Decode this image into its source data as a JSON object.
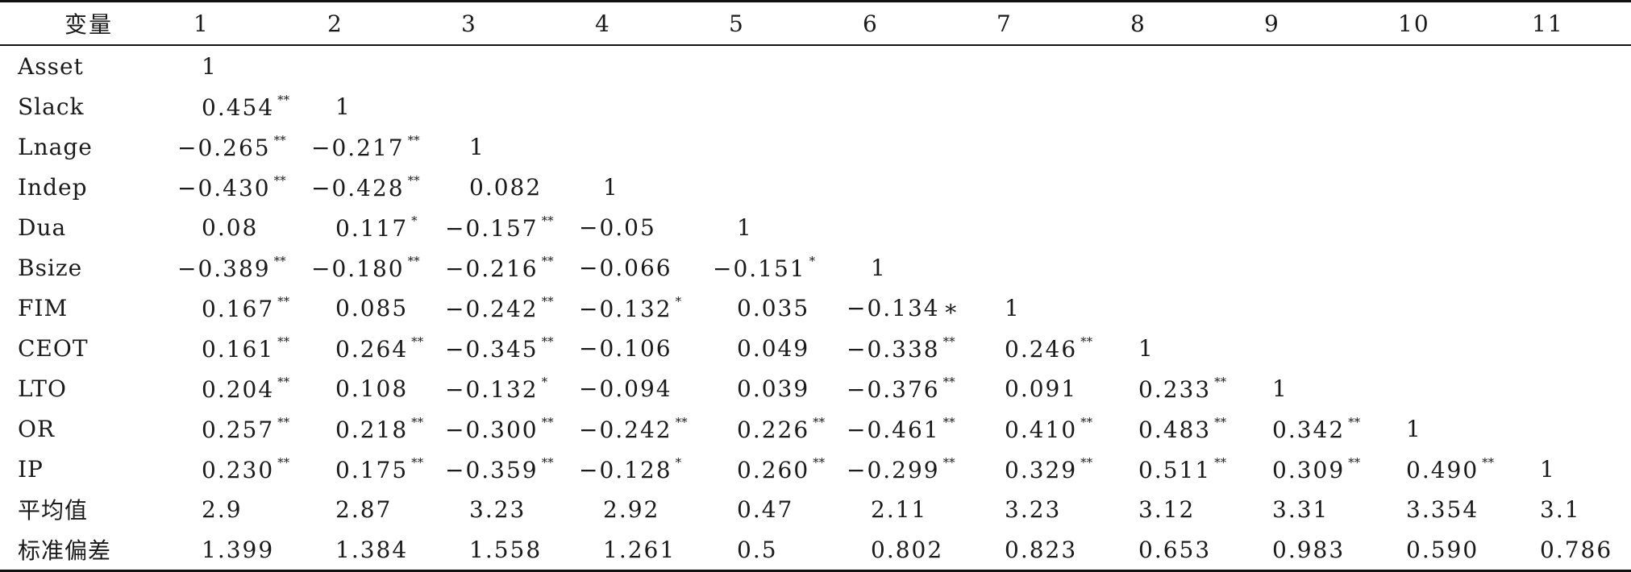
{
  "table": {
    "headers": [
      "变量",
      "1",
      "2",
      "3",
      "4",
      "5",
      "6",
      "7",
      "8",
      "9",
      "10",
      "11"
    ],
    "rows": [
      {
        "label": "Asset",
        "cells": [
          {
            "v": "1",
            "s": ""
          }
        ]
      },
      {
        "label": "Slack",
        "cells": [
          {
            "v": "0.454",
            "s": "**"
          },
          {
            "v": "1",
            "s": ""
          }
        ]
      },
      {
        "label": "Lnage",
        "cells": [
          {
            "v": "−0.265",
            "s": "**"
          },
          {
            "v": "−0.217",
            "s": "**"
          },
          {
            "v": "1",
            "s": ""
          }
        ]
      },
      {
        "label": "Indep",
        "cells": [
          {
            "v": "−0.430",
            "s": "**"
          },
          {
            "v": "−0.428",
            "s": "**"
          },
          {
            "v": "0.082",
            "s": ""
          },
          {
            "v": "1",
            "s": ""
          }
        ]
      },
      {
        "label": "Dua",
        "cells": [
          {
            "v": "0.08",
            "s": ""
          },
          {
            "v": "0.117",
            "s": "*"
          },
          {
            "v": "−0.157",
            "s": "**"
          },
          {
            "v": "−0.05",
            "s": ""
          },
          {
            "v": "1",
            "s": ""
          }
        ]
      },
      {
        "label": "Bsize",
        "cells": [
          {
            "v": "−0.389",
            "s": "**"
          },
          {
            "v": "−0.180",
            "s": "**"
          },
          {
            "v": "−0.216",
            "s": "**"
          },
          {
            "v": "−0.066",
            "s": ""
          },
          {
            "v": "−0.151",
            "s": "*"
          },
          {
            "v": "1",
            "s": ""
          }
        ]
      },
      {
        "label": "FIM",
        "cells": [
          {
            "v": "0.167",
            "s": "**"
          },
          {
            "v": "0.085",
            "s": ""
          },
          {
            "v": "−0.242",
            "s": "**"
          },
          {
            "v": "−0.132",
            "s": "*"
          },
          {
            "v": "0.035",
            "s": ""
          },
          {
            "v": "−0.134",
            "s": "∗",
            "inline": true
          },
          {
            "v": "1",
            "s": ""
          }
        ]
      },
      {
        "label": "CEOT",
        "cells": [
          {
            "v": "0.161",
            "s": "**"
          },
          {
            "v": "0.264",
            "s": "**"
          },
          {
            "v": "−0.345",
            "s": "**"
          },
          {
            "v": "−0.106",
            "s": ""
          },
          {
            "v": "0.049",
            "s": ""
          },
          {
            "v": "−0.338",
            "s": "**"
          },
          {
            "v": "0.246",
            "s": "**"
          },
          {
            "v": "1",
            "s": ""
          }
        ]
      },
      {
        "label": "LTO",
        "cells": [
          {
            "v": "0.204",
            "s": "**"
          },
          {
            "v": "0.108",
            "s": ""
          },
          {
            "v": "−0.132",
            "s": "*"
          },
          {
            "v": "−0.094",
            "s": ""
          },
          {
            "v": "0.039",
            "s": ""
          },
          {
            "v": "−0.376",
            "s": "**"
          },
          {
            "v": "0.091",
            "s": ""
          },
          {
            "v": "0.233",
            "s": "**"
          },
          {
            "v": "1",
            "s": ""
          }
        ]
      },
      {
        "label": "OR",
        "cells": [
          {
            "v": "0.257",
            "s": "**"
          },
          {
            "v": "0.218",
            "s": "**"
          },
          {
            "v": "−0.300",
            "s": "**"
          },
          {
            "v": "−0.242",
            "s": "**"
          },
          {
            "v": "0.226",
            "s": "**"
          },
          {
            "v": "−0.461",
            "s": "**"
          },
          {
            "v": "0.410",
            "s": "**"
          },
          {
            "v": "0.483",
            "s": "**"
          },
          {
            "v": "0.342",
            "s": "**"
          },
          {
            "v": "1",
            "s": ""
          }
        ]
      },
      {
        "label": "IP",
        "cells": [
          {
            "v": "0.230",
            "s": "**"
          },
          {
            "v": "0.175",
            "s": "**"
          },
          {
            "v": "−0.359",
            "s": "**"
          },
          {
            "v": "−0.128",
            "s": "*"
          },
          {
            "v": "0.260",
            "s": "**"
          },
          {
            "v": "−0.299",
            "s": "**"
          },
          {
            "v": "0.329",
            "s": "**"
          },
          {
            "v": "0.511",
            "s": "**"
          },
          {
            "v": "0.309",
            "s": "**"
          },
          {
            "v": "0.490",
            "s": "**"
          },
          {
            "v": "1",
            "s": ""
          }
        ]
      },
      {
        "label": "平均值",
        "cells": [
          {
            "v": "2.9",
            "s": ""
          },
          {
            "v": "2.87",
            "s": ""
          },
          {
            "v": "3.23",
            "s": ""
          },
          {
            "v": "2.92",
            "s": ""
          },
          {
            "v": "0.47",
            "s": ""
          },
          {
            "v": "2.11",
            "s": ""
          },
          {
            "v": "3.23",
            "s": ""
          },
          {
            "v": "3.12",
            "s": ""
          },
          {
            "v": "3.31",
            "s": ""
          },
          {
            "v": "3.354",
            "s": ""
          },
          {
            "v": "3.1",
            "s": ""
          }
        ]
      },
      {
        "label": "标准偏差",
        "cells": [
          {
            "v": "1.399",
            "s": ""
          },
          {
            "v": "1.384",
            "s": ""
          },
          {
            "v": "1.558",
            "s": ""
          },
          {
            "v": "1.261",
            "s": ""
          },
          {
            "v": "0.5",
            "s": ""
          },
          {
            "v": "0.802",
            "s": ""
          },
          {
            "v": "0.823",
            "s": ""
          },
          {
            "v": "0.653",
            "s": ""
          },
          {
            "v": "0.983",
            "s": ""
          },
          {
            "v": "0.590",
            "s": ""
          },
          {
            "v": "0.786",
            "s": ""
          }
        ]
      }
    ]
  }
}
